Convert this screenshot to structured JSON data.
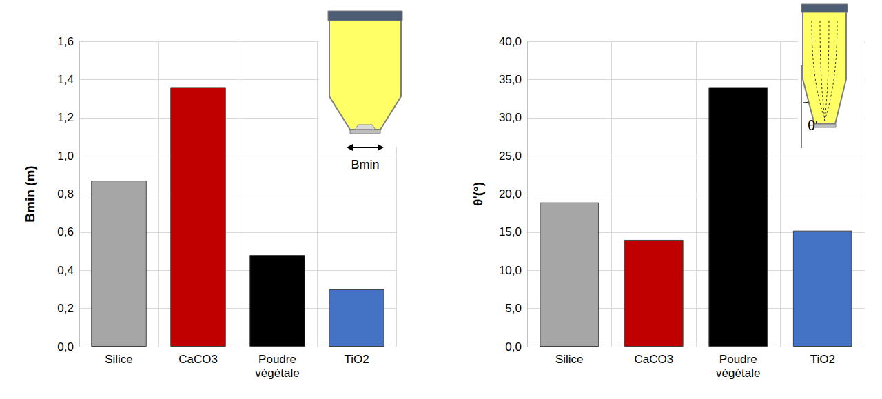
{
  "chart_data": [
    {
      "type": "bar",
      "categories": [
        "Silice",
        "CaCO3",
        "Poudre végétale",
        "TiO2"
      ],
      "values": [
        0.87,
        1.36,
        0.48,
        0.3
      ],
      "colors": [
        "#a6a6a6",
        "#c00000",
        "#000000",
        "#4472c4"
      ],
      "ylabel": "Bmin (m)",
      "ylim": [
        0,
        1.6
      ],
      "yticks": [
        {
          "value": 0,
          "label": "0,0"
        },
        {
          "value": 0.2,
          "label": "0,2"
        },
        {
          "value": 0.4,
          "label": "0,4"
        },
        {
          "value": 0.6,
          "label": "0,6"
        },
        {
          "value": 0.8,
          "label": "0,8"
        },
        {
          "value": 1.0,
          "label": "1,0"
        },
        {
          "value": 1.2,
          "label": "1,2"
        },
        {
          "value": 1.4,
          "label": "1,4"
        },
        {
          "value": 1.6,
          "label": "1,6"
        }
      ],
      "annotation": "Bmin",
      "grid": true
    },
    {
      "type": "bar",
      "categories": [
        "Silice",
        "CaCO3",
        "Poudre végétale",
        "TiO2"
      ],
      "values": [
        18.9,
        14.0,
        34.0,
        15.2
      ],
      "colors": [
        "#a6a6a6",
        "#c00000",
        "#000000",
        "#4472c4"
      ],
      "ylabel": "θ'(°)",
      "ylim": [
        0,
        40
      ],
      "yticks": [
        {
          "value": 0,
          "label": "0,0"
        },
        {
          "value": 5,
          "label": "5,0"
        },
        {
          "value": 10,
          "label": "10,0"
        },
        {
          "value": 15,
          "label": "15,0"
        },
        {
          "value": 20,
          "label": "20,0"
        },
        {
          "value": 25,
          "label": "25,0"
        },
        {
          "value": 30,
          "label": "30,0"
        },
        {
          "value": 35,
          "label": "35,0"
        },
        {
          "value": 40,
          "label": "40,0"
        }
      ],
      "annotation": "θ'",
      "grid": true
    }
  ]
}
